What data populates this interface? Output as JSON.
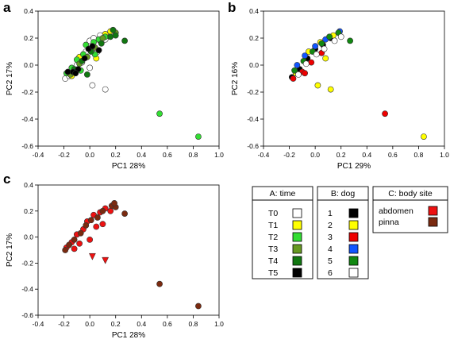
{
  "chart_data": [
    {
      "panel": "a",
      "type": "scatter",
      "xlabel": "PC1 28%",
      "ylabel": "PC2 17%",
      "xlim": [
        -0.4,
        1.0
      ],
      "ylim": [
        -0.6,
        0.4
      ],
      "xticks": [
        "-0.4",
        "-0.2",
        "0.0",
        "0.2",
        "0.4",
        "0.6",
        "0.8",
        "1.0"
      ],
      "yticks": [
        "-0.6",
        "-0.4",
        "-0.2",
        "0.0",
        "0.2",
        "0.4"
      ],
      "color_by": "A: time",
      "points": [
        {
          "x": -0.19,
          "y": -0.1,
          "group": "T0"
        },
        {
          "x": -0.16,
          "y": -0.08,
          "group": "T0"
        },
        {
          "x": -0.12,
          "y": -0.04,
          "group": "T0"
        },
        {
          "x": -0.1,
          "y": 0.0,
          "group": "T0"
        },
        {
          "x": -0.06,
          "y": 0.02,
          "group": "T0"
        },
        {
          "x": -0.03,
          "y": 0.1,
          "group": "T0"
        },
        {
          "x": 0.0,
          "y": 0.18,
          "group": "T0"
        },
        {
          "x": 0.03,
          "y": 0.2,
          "group": "T0"
        },
        {
          "x": 0.08,
          "y": 0.22,
          "group": "T0"
        },
        {
          "x": 0.12,
          "y": 0.19,
          "group": "T0"
        },
        {
          "x": 0.0,
          "y": -0.02,
          "group": "T0"
        },
        {
          "x": 0.06,
          "y": 0.1,
          "group": "T0"
        },
        {
          "x": 0.02,
          "y": -0.15,
          "group": "T0"
        },
        {
          "x": 0.12,
          "y": -0.18,
          "group": "T0"
        },
        {
          "x": -0.14,
          "y": -0.08,
          "group": "T1"
        },
        {
          "x": -0.08,
          "y": 0.06,
          "group": "T1"
        },
        {
          "x": 0.0,
          "y": 0.12,
          "group": "T1"
        },
        {
          "x": 0.08,
          "y": 0.18,
          "group": "T1"
        },
        {
          "x": 0.12,
          "y": 0.23,
          "group": "T1"
        },
        {
          "x": 0.16,
          "y": 0.25,
          "group": "T1"
        },
        {
          "x": 0.05,
          "y": 0.05,
          "group": "T1"
        },
        {
          "x": -0.18,
          "y": -0.06,
          "group": "T2"
        },
        {
          "x": -0.14,
          "y": -0.02,
          "group": "T2"
        },
        {
          "x": -0.1,
          "y": 0.04,
          "group": "T2"
        },
        {
          "x": -0.05,
          "y": 0.08,
          "group": "T2"
        },
        {
          "x": -0.03,
          "y": 0.15,
          "group": "T2"
        },
        {
          "x": 0.03,
          "y": 0.17,
          "group": "T2"
        },
        {
          "x": 0.07,
          "y": 0.19,
          "group": "T2"
        },
        {
          "x": 0.12,
          "y": 0.21,
          "group": "T2"
        },
        {
          "x": 0.04,
          "y": 0.08,
          "group": "T2"
        },
        {
          "x": -0.07,
          "y": -0.04,
          "group": "T2"
        },
        {
          "x": 0.54,
          "y": -0.36,
          "group": "T2"
        },
        {
          "x": 0.84,
          "y": -0.53,
          "group": "T2"
        },
        {
          "x": -0.15,
          "y": -0.07,
          "group": "T3"
        },
        {
          "x": -0.08,
          "y": 0.01,
          "group": "T3"
        },
        {
          "x": -0.02,
          "y": 0.06,
          "group": "T3"
        },
        {
          "x": 0.04,
          "y": 0.13,
          "group": "T3"
        },
        {
          "x": 0.1,
          "y": 0.2,
          "group": "T3"
        },
        {
          "x": 0.2,
          "y": 0.24,
          "group": "T3"
        },
        {
          "x": -0.12,
          "y": -0.03,
          "group": "T4"
        },
        {
          "x": -0.06,
          "y": 0.03,
          "group": "T4"
        },
        {
          "x": 0.01,
          "y": 0.1,
          "group": "T4"
        },
        {
          "x": 0.09,
          "y": 0.16,
          "group": "T4"
        },
        {
          "x": 0.16,
          "y": 0.21,
          "group": "T4"
        },
        {
          "x": 0.2,
          "y": 0.22,
          "group": "T4"
        },
        {
          "x": 0.27,
          "y": 0.18,
          "group": "T4"
        },
        {
          "x": 0.18,
          "y": 0.26,
          "group": "T4"
        },
        {
          "x": -0.02,
          "y": -0.07,
          "group": "T4"
        },
        {
          "x": -0.17,
          "y": -0.05,
          "group": "T5"
        },
        {
          "x": -0.13,
          "y": -0.05,
          "group": "T5"
        },
        {
          "x": -0.09,
          "y": -0.03,
          "group": "T5"
        },
        {
          "x": -0.04,
          "y": 0.05,
          "group": "T5"
        },
        {
          "x": -0.01,
          "y": 0.12,
          "group": "T5"
        },
        {
          "x": 0.02,
          "y": 0.14,
          "group": "T5"
        },
        {
          "x": 0.07,
          "y": 0.11,
          "group": "T5"
        },
        {
          "x": -0.11,
          "y": -0.06,
          "group": "T5"
        }
      ]
    },
    {
      "panel": "b",
      "type": "scatter",
      "xlabel": "PC1 29%",
      "ylabel": "PC2 16%",
      "xlim": [
        -0.4,
        1.0
      ],
      "ylim": [
        -0.6,
        0.4
      ],
      "xticks": [
        "-0.4",
        "-0.2",
        "0.0",
        "0.2",
        "0.4",
        "0.6",
        "0.8",
        "1.0"
      ],
      "yticks": [
        "-0.6",
        "-0.4",
        "-0.2",
        "0.0",
        "0.2",
        "0.4"
      ],
      "color_by": "B: dog",
      "points": [
        {
          "x": -0.18,
          "y": -0.09,
          "group": "1"
        },
        {
          "x": -0.12,
          "y": -0.03,
          "group": "1"
        },
        {
          "x": -0.06,
          "y": 0.05,
          "group": "1"
        },
        {
          "x": 0.0,
          "y": 0.12,
          "group": "1"
        },
        {
          "x": 0.06,
          "y": 0.15,
          "group": "1"
        },
        {
          "x": 0.12,
          "y": 0.2,
          "group": "1"
        },
        {
          "x": -0.15,
          "y": -0.06,
          "group": "2"
        },
        {
          "x": -0.05,
          "y": 0.1,
          "group": "2"
        },
        {
          "x": 0.04,
          "y": 0.17,
          "group": "2"
        },
        {
          "x": 0.14,
          "y": 0.22,
          "group": "2"
        },
        {
          "x": 0.08,
          "y": 0.05,
          "group": "2"
        },
        {
          "x": 0.02,
          "y": -0.15,
          "group": "2"
        },
        {
          "x": 0.12,
          "y": -0.18,
          "group": "2"
        },
        {
          "x": 0.84,
          "y": -0.53,
          "group": "2"
        },
        {
          "x": -0.17,
          "y": -0.1,
          "group": "3"
        },
        {
          "x": -0.1,
          "y": -0.05,
          "group": "3"
        },
        {
          "x": -0.03,
          "y": 0.02,
          "group": "3"
        },
        {
          "x": 0.05,
          "y": 0.09,
          "group": "3"
        },
        {
          "x": -0.08,
          "y": -0.06,
          "group": "3"
        },
        {
          "x": 0.54,
          "y": -0.36,
          "group": "3"
        },
        {
          "x": -0.14,
          "y": 0.0,
          "group": "4"
        },
        {
          "x": -0.08,
          "y": 0.07,
          "group": "4"
        },
        {
          "x": 0.0,
          "y": 0.14,
          "group": "4"
        },
        {
          "x": 0.08,
          "y": 0.19,
          "group": "4"
        },
        {
          "x": 0.19,
          "y": 0.25,
          "group": "4"
        },
        {
          "x": -0.16,
          "y": -0.04,
          "group": "5"
        },
        {
          "x": -0.09,
          "y": 0.03,
          "group": "5"
        },
        {
          "x": -0.02,
          "y": 0.1,
          "group": "5"
        },
        {
          "x": 0.05,
          "y": 0.16,
          "group": "5"
        },
        {
          "x": 0.11,
          "y": 0.21,
          "group": "5"
        },
        {
          "x": 0.18,
          "y": 0.24,
          "group": "5"
        },
        {
          "x": 0.27,
          "y": 0.18,
          "group": "5"
        },
        {
          "x": -0.13,
          "y": -0.07,
          "group": "6"
        },
        {
          "x": -0.07,
          "y": 0.01,
          "group": "6"
        },
        {
          "x": 0.01,
          "y": 0.08,
          "group": "6"
        },
        {
          "x": 0.07,
          "y": 0.12,
          "group": "6"
        },
        {
          "x": 0.15,
          "y": 0.18,
          "group": "6"
        },
        {
          "x": 0.2,
          "y": 0.21,
          "group": "6"
        }
      ]
    },
    {
      "panel": "c",
      "type": "scatter",
      "xlabel": "PC1 28%",
      "ylabel": "PC2 17%",
      "xlim": [
        -0.4,
        1.0
      ],
      "ylim": [
        -0.6,
        0.4
      ],
      "xticks": [
        "-0.4",
        "-0.2",
        "0.0",
        "0.2",
        "0.4",
        "0.6",
        "0.8",
        "1.0"
      ],
      "yticks": [
        "-0.6",
        "-0.4",
        "-0.2",
        "0.0",
        "0.2",
        "0.4"
      ],
      "color_by": "C: body site",
      "points": [
        {
          "x": -0.18,
          "y": -0.08,
          "group": "abdomen",
          "marker": "circle"
        },
        {
          "x": -0.14,
          "y": -0.04,
          "group": "abdomen",
          "marker": "circle"
        },
        {
          "x": -0.1,
          "y": 0.02,
          "group": "abdomen",
          "marker": "circle"
        },
        {
          "x": -0.05,
          "y": 0.06,
          "group": "abdomen",
          "marker": "circle"
        },
        {
          "x": -0.02,
          "y": 0.12,
          "group": "abdomen",
          "marker": "circle"
        },
        {
          "x": 0.03,
          "y": 0.17,
          "group": "abdomen",
          "marker": "circle"
        },
        {
          "x": 0.08,
          "y": 0.19,
          "group": "abdomen",
          "marker": "circle"
        },
        {
          "x": 0.12,
          "y": 0.22,
          "group": "abdomen",
          "marker": "circle"
        },
        {
          "x": 0.05,
          "y": 0.08,
          "group": "abdomen",
          "marker": "circle"
        },
        {
          "x": -0.08,
          "y": -0.05,
          "group": "abdomen",
          "marker": "circle"
        },
        {
          "x": 0.0,
          "y": -0.02,
          "group": "abdomen",
          "marker": "circle"
        },
        {
          "x": 0.16,
          "y": 0.2,
          "group": "abdomen",
          "marker": "circle"
        },
        {
          "x": -0.12,
          "y": -0.09,
          "group": "abdomen",
          "marker": "circle"
        },
        {
          "x": 0.1,
          "y": 0.1,
          "group": "abdomen",
          "marker": "circle"
        },
        {
          "x": 0.02,
          "y": -0.15,
          "group": "abdomen",
          "marker": "triangle"
        },
        {
          "x": 0.12,
          "y": -0.18,
          "group": "abdomen",
          "marker": "triangle"
        },
        {
          "x": -0.16,
          "y": -0.06,
          "group": "pinna",
          "marker": "circle"
        },
        {
          "x": -0.12,
          "y": -0.02,
          "group": "pinna",
          "marker": "circle"
        },
        {
          "x": -0.07,
          "y": 0.03,
          "group": "pinna",
          "marker": "circle"
        },
        {
          "x": -0.03,
          "y": 0.09,
          "group": "pinna",
          "marker": "circle"
        },
        {
          "x": 0.01,
          "y": 0.13,
          "group": "pinna",
          "marker": "circle"
        },
        {
          "x": 0.06,
          "y": 0.15,
          "group": "pinna",
          "marker": "circle"
        },
        {
          "x": 0.1,
          "y": 0.2,
          "group": "pinna",
          "marker": "circle"
        },
        {
          "x": 0.17,
          "y": 0.24,
          "group": "pinna",
          "marker": "circle"
        },
        {
          "x": 0.2,
          "y": 0.23,
          "group": "pinna",
          "marker": "circle"
        },
        {
          "x": 0.27,
          "y": 0.18,
          "group": "pinna",
          "marker": "circle"
        },
        {
          "x": 0.19,
          "y": 0.26,
          "group": "pinna",
          "marker": "circle"
        },
        {
          "x": 0.54,
          "y": -0.36,
          "group": "pinna",
          "marker": "circle"
        },
        {
          "x": 0.84,
          "y": -0.53,
          "group": "pinna",
          "marker": "circle"
        },
        {
          "x": -0.19,
          "y": -0.1,
          "group": "pinna",
          "marker": "circle"
        }
      ]
    }
  ],
  "legends": [
    {
      "title": "A: time",
      "entries": [
        {
          "label": "T0",
          "color": "#ffffff"
        },
        {
          "label": "T1",
          "color": "#ffff00"
        },
        {
          "label": "T2",
          "color": "#33dd33"
        },
        {
          "label": "T3",
          "color": "#669922"
        },
        {
          "label": "T4",
          "color": "#117711"
        },
        {
          "label": "T5",
          "color": "#000000"
        }
      ]
    },
    {
      "title": "B: dog",
      "entries": [
        {
          "label": "1",
          "color": "#000000"
        },
        {
          "label": "2",
          "color": "#ffff00"
        },
        {
          "label": "3",
          "color": "#ee0000"
        },
        {
          "label": "4",
          "color": "#1155ff"
        },
        {
          "label": "5",
          "color": "#118811"
        },
        {
          "label": "6",
          "color": "#ffffff"
        }
      ]
    },
    {
      "title": "C: body site",
      "entries": [
        {
          "label": "abdomen",
          "color": "#ee1111"
        },
        {
          "label": "pinna",
          "color": "#7a2a10"
        }
      ]
    }
  ]
}
